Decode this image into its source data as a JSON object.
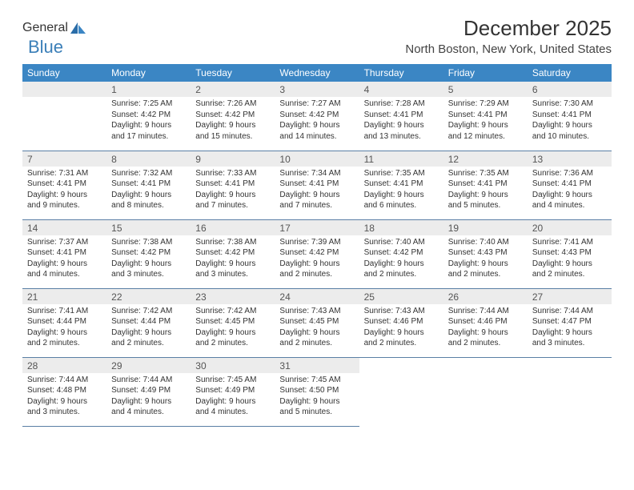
{
  "logo": {
    "text1": "General",
    "text2": "Blue"
  },
  "title": "December 2025",
  "location": "North Boston, New York, United States",
  "colors": {
    "header_bg": "#3b86c4",
    "header_text": "#ffffff",
    "daynum_bg": "#ececec",
    "row_border": "#5a7fa5",
    "logo_blue": "#3b7fb8",
    "text": "#333333"
  },
  "days": [
    "Sunday",
    "Monday",
    "Tuesday",
    "Wednesday",
    "Thursday",
    "Friday",
    "Saturday"
  ],
  "weeks": [
    [
      null,
      {
        "n": "1",
        "sunrise": "7:25 AM",
        "sunset": "4:42 PM",
        "daylight": "9 hours and 17 minutes."
      },
      {
        "n": "2",
        "sunrise": "7:26 AM",
        "sunset": "4:42 PM",
        "daylight": "9 hours and 15 minutes."
      },
      {
        "n": "3",
        "sunrise": "7:27 AM",
        "sunset": "4:42 PM",
        "daylight": "9 hours and 14 minutes."
      },
      {
        "n": "4",
        "sunrise": "7:28 AM",
        "sunset": "4:41 PM",
        "daylight": "9 hours and 13 minutes."
      },
      {
        "n": "5",
        "sunrise": "7:29 AM",
        "sunset": "4:41 PM",
        "daylight": "9 hours and 12 minutes."
      },
      {
        "n": "6",
        "sunrise": "7:30 AM",
        "sunset": "4:41 PM",
        "daylight": "9 hours and 10 minutes."
      }
    ],
    [
      {
        "n": "7",
        "sunrise": "7:31 AM",
        "sunset": "4:41 PM",
        "daylight": "9 hours and 9 minutes."
      },
      {
        "n": "8",
        "sunrise": "7:32 AM",
        "sunset": "4:41 PM",
        "daylight": "9 hours and 8 minutes."
      },
      {
        "n": "9",
        "sunrise": "7:33 AM",
        "sunset": "4:41 PM",
        "daylight": "9 hours and 7 minutes."
      },
      {
        "n": "10",
        "sunrise": "7:34 AM",
        "sunset": "4:41 PM",
        "daylight": "9 hours and 7 minutes."
      },
      {
        "n": "11",
        "sunrise": "7:35 AM",
        "sunset": "4:41 PM",
        "daylight": "9 hours and 6 minutes."
      },
      {
        "n": "12",
        "sunrise": "7:35 AM",
        "sunset": "4:41 PM",
        "daylight": "9 hours and 5 minutes."
      },
      {
        "n": "13",
        "sunrise": "7:36 AM",
        "sunset": "4:41 PM",
        "daylight": "9 hours and 4 minutes."
      }
    ],
    [
      {
        "n": "14",
        "sunrise": "7:37 AM",
        "sunset": "4:41 PM",
        "daylight": "9 hours and 4 minutes."
      },
      {
        "n": "15",
        "sunrise": "7:38 AM",
        "sunset": "4:42 PM",
        "daylight": "9 hours and 3 minutes."
      },
      {
        "n": "16",
        "sunrise": "7:38 AM",
        "sunset": "4:42 PM",
        "daylight": "9 hours and 3 minutes."
      },
      {
        "n": "17",
        "sunrise": "7:39 AM",
        "sunset": "4:42 PM",
        "daylight": "9 hours and 2 minutes."
      },
      {
        "n": "18",
        "sunrise": "7:40 AM",
        "sunset": "4:42 PM",
        "daylight": "9 hours and 2 minutes."
      },
      {
        "n": "19",
        "sunrise": "7:40 AM",
        "sunset": "4:43 PM",
        "daylight": "9 hours and 2 minutes."
      },
      {
        "n": "20",
        "sunrise": "7:41 AM",
        "sunset": "4:43 PM",
        "daylight": "9 hours and 2 minutes."
      }
    ],
    [
      {
        "n": "21",
        "sunrise": "7:41 AM",
        "sunset": "4:44 PM",
        "daylight": "9 hours and 2 minutes."
      },
      {
        "n": "22",
        "sunrise": "7:42 AM",
        "sunset": "4:44 PM",
        "daylight": "9 hours and 2 minutes."
      },
      {
        "n": "23",
        "sunrise": "7:42 AM",
        "sunset": "4:45 PM",
        "daylight": "9 hours and 2 minutes."
      },
      {
        "n": "24",
        "sunrise": "7:43 AM",
        "sunset": "4:45 PM",
        "daylight": "9 hours and 2 minutes."
      },
      {
        "n": "25",
        "sunrise": "7:43 AM",
        "sunset": "4:46 PM",
        "daylight": "9 hours and 2 minutes."
      },
      {
        "n": "26",
        "sunrise": "7:44 AM",
        "sunset": "4:46 PM",
        "daylight": "9 hours and 2 minutes."
      },
      {
        "n": "27",
        "sunrise": "7:44 AM",
        "sunset": "4:47 PM",
        "daylight": "9 hours and 3 minutes."
      }
    ],
    [
      {
        "n": "28",
        "sunrise": "7:44 AM",
        "sunset": "4:48 PM",
        "daylight": "9 hours and 3 minutes."
      },
      {
        "n": "29",
        "sunrise": "7:44 AM",
        "sunset": "4:49 PM",
        "daylight": "9 hours and 4 minutes."
      },
      {
        "n": "30",
        "sunrise": "7:45 AM",
        "sunset": "4:49 PM",
        "daylight": "9 hours and 4 minutes."
      },
      {
        "n": "31",
        "sunrise": "7:45 AM",
        "sunset": "4:50 PM",
        "daylight": "9 hours and 5 minutes."
      },
      null,
      null,
      null
    ]
  ],
  "labels": {
    "sunrise": "Sunrise:",
    "sunset": "Sunset:",
    "daylight": "Daylight:"
  }
}
